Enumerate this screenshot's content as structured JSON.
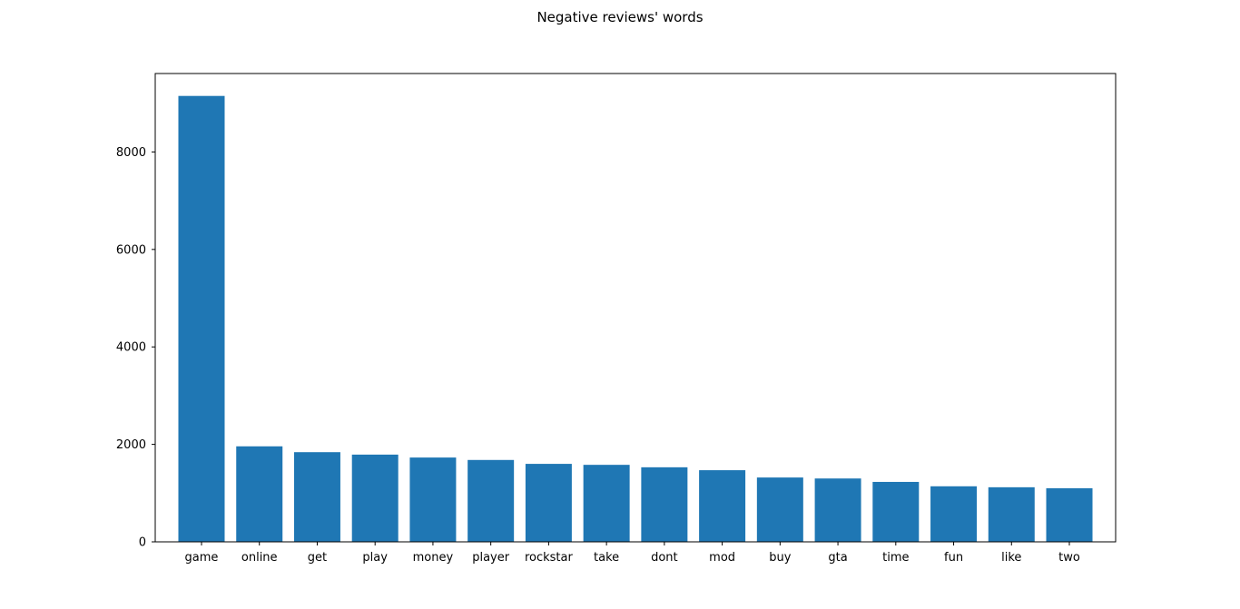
{
  "chart_data": {
    "type": "bar",
    "title": "Negative reviews' words",
    "xlabel": "",
    "ylabel": "",
    "categories": [
      "game",
      "online",
      "get",
      "play",
      "money",
      "player",
      "rockstar",
      "take",
      "dont",
      "mod",
      "buy",
      "gta",
      "time",
      "fun",
      "like",
      "two"
    ],
    "values": [
      9150,
      1960,
      1840,
      1790,
      1730,
      1680,
      1600,
      1580,
      1530,
      1470,
      1320,
      1300,
      1230,
      1140,
      1120,
      1100
    ],
    "ylim": [
      0,
      9610
    ],
    "yticks": [
      0,
      2000,
      4000,
      6000,
      8000
    ],
    "grid": false,
    "legend": "none",
    "bar_color": "#1f77b4"
  }
}
